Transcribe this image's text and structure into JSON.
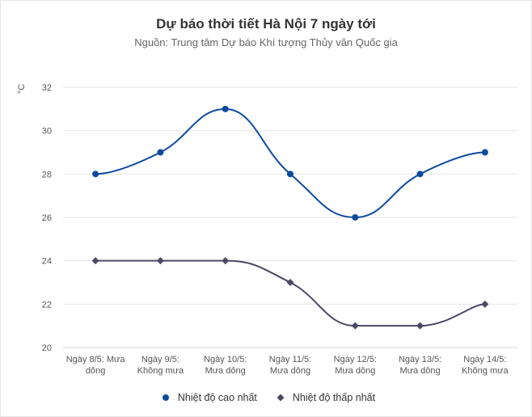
{
  "chart_data": {
    "type": "line",
    "title": "Dự báo thời tiết Hà Nội 7 ngày tới",
    "subtitle": "Nguồn: Trung tâm Dự báo Khí tượng Thủy văn Quốc gia",
    "ylabel": "°C",
    "xlabel": "",
    "ylim": [
      20,
      32
    ],
    "yticks": [
      20,
      22,
      24,
      26,
      28,
      30,
      32
    ],
    "grid": true,
    "legend_position": "bottom",
    "categories": [
      [
        "Ngày 8/5: Mưa",
        "dông"
      ],
      [
        "Ngày 9/5:",
        "Không mưa"
      ],
      [
        "Ngày 10/5:",
        "Mưa dông"
      ],
      [
        "Ngày 11/5:",
        "Mưa dông"
      ],
      [
        "Ngày 12/5:",
        "Mưa dông"
      ],
      [
        "Ngày 13/5:",
        "Mưa dông"
      ],
      [
        "Ngày 14/5:",
        "Không mưa"
      ]
    ],
    "series": [
      {
        "name": "Nhiệt độ cao nhất",
        "values": [
          28,
          29,
          31,
          28,
          26,
          28,
          29
        ],
        "color": "#0d4a9e",
        "marker": "circle"
      },
      {
        "name": "Nhiệt độ thấp nhất",
        "values": [
          24,
          24,
          24,
          23,
          21,
          21,
          22
        ],
        "color": "#4b4a66",
        "marker": "diamond"
      }
    ]
  }
}
